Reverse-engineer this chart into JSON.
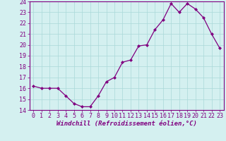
{
  "x": [
    0,
    1,
    2,
    3,
    4,
    5,
    6,
    7,
    8,
    9,
    10,
    11,
    12,
    13,
    14,
    15,
    16,
    17,
    18,
    19,
    20,
    21,
    22,
    23
  ],
  "y": [
    16.2,
    16.0,
    16.0,
    16.0,
    15.3,
    14.6,
    14.3,
    14.3,
    15.3,
    16.6,
    17.0,
    18.4,
    18.6,
    19.9,
    20.0,
    21.4,
    22.3,
    23.8,
    23.0,
    23.8,
    23.3,
    22.5,
    21.0,
    19.7
  ],
  "line_color": "#800080",
  "marker": "D",
  "marker_size": 2,
  "bg_color": "#d4f0f0",
  "grid_color": "#aad8d8",
  "xlabel": "Windchill (Refroidissement éolien,°C)",
  "xlim": [
    -0.5,
    23.5
  ],
  "ylim": [
    14,
    24
  ],
  "yticks": [
    14,
    15,
    16,
    17,
    18,
    19,
    20,
    21,
    22,
    23,
    24
  ],
  "xticks": [
    0,
    1,
    2,
    3,
    4,
    5,
    6,
    7,
    8,
    9,
    10,
    11,
    12,
    13,
    14,
    15,
    16,
    17,
    18,
    19,
    20,
    21,
    22,
    23
  ],
  "tick_fontsize": 6.0,
  "xlabel_fontsize": 6.5,
  "spine_color": "#800080",
  "line_width": 0.9
}
